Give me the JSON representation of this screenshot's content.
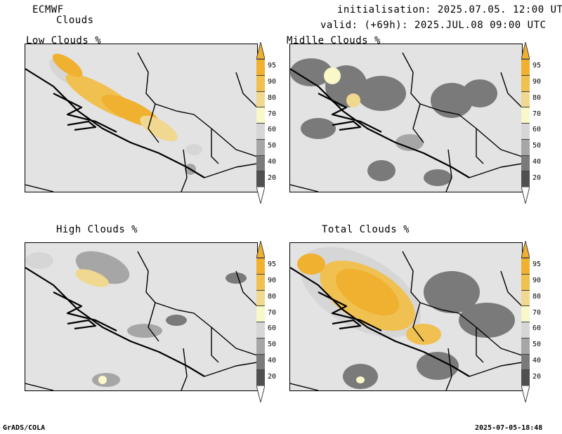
{
  "header": {
    "model": "ECMWF",
    "product": "Clouds",
    "init_line": "initialisation: 2025.07.05. 12:00 UTC",
    "valid_line": "valid: (+69h): 2025.JUL.08 09:00 UTC"
  },
  "panels": [
    {
      "title": "Low Clouds %"
    },
    {
      "title": "Midlle Clouds %"
    },
    {
      "title": "High Clouds %"
    },
    {
      "title": "Total Clouds %"
    }
  ],
  "legend": {
    "levels": [
      "95",
      "90",
      "80",
      "70",
      "60",
      "50",
      "40",
      "20"
    ],
    "colors": [
      "#f0b030",
      "#f0c050",
      "#f0d890",
      "#f8f8c8",
      "#d6d6d6",
      "#a6a6a6",
      "#7a7a7a",
      "#505050"
    ]
  },
  "footer": {
    "left": "GrADS/COLA",
    "right": "2025-07-05-18:48"
  }
}
